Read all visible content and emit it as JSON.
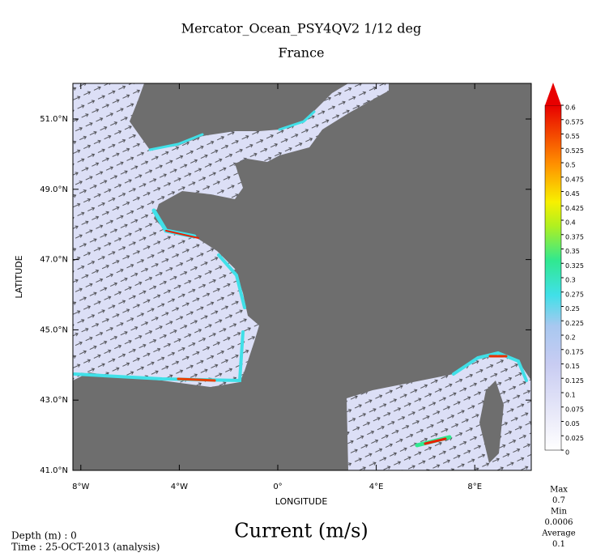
{
  "map": {
    "title": "Mercator_Ocean_PSY4QV2 1/12 deg",
    "subtitle": "France",
    "xlabel": "LONGITUDE",
    "ylabel": "LATITUDE",
    "xticks": [
      {
        "value": -8,
        "label": "8°W"
      },
      {
        "value": -4,
        "label": "4°W"
      },
      {
        "value": 0,
        "label": "0°"
      },
      {
        "value": 4,
        "label": "4°E"
      },
      {
        "value": 8,
        "label": "8°E"
      }
    ],
    "yticks": [
      {
        "value": 41,
        "label": "41.0°N"
      },
      {
        "value": 43,
        "label": "43.0°N"
      },
      {
        "value": 45,
        "label": "45.0°N"
      },
      {
        "value": 47,
        "label": "47.0°N"
      },
      {
        "value": 49,
        "label": "49.0°N"
      },
      {
        "value": 51,
        "label": "51.0°N"
      }
    ],
    "colorbar": {
      "lim": [
        0,
        0.6
      ],
      "ticks": [
        0,
        0.025,
        0.05,
        0.075,
        0.1,
        0.125,
        0.15,
        0.175,
        0.2,
        0.225,
        0.25,
        0.275,
        0.3,
        0.325,
        0.35,
        0.375,
        0.4,
        0.425,
        0.45,
        0.475,
        0.5,
        0.525,
        0.55,
        0.575,
        0.6
      ]
    },
    "variable": "Current (m/s)",
    "depth": "Depth (m) : 0",
    "time": "Time : 25-OCT-2013 (analysis)",
    "stats": [
      "Max",
      "0.7",
      "Min",
      "0.0006",
      "Average",
      "0.1"
    ]
  }
}
